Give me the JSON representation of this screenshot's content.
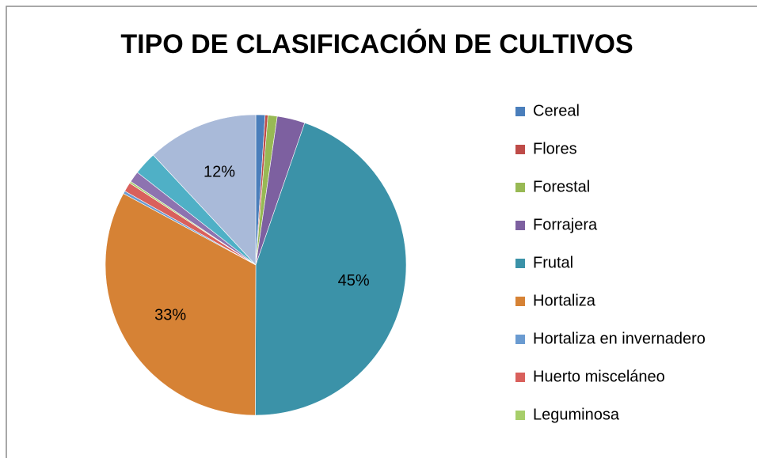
{
  "chart_data": {
    "type": "pie",
    "title": "TIPO DE CLASIFICACIÓN DE CULTIVOS",
    "categories": [
      "Cereal",
      "Flores",
      "Forestal",
      "Forrajera",
      "Frutal",
      "Hortaliza",
      "Hortaliza en invernadero",
      "Huerto misceláneo",
      "Leguminosa",
      null,
      null,
      null
    ],
    "values": [
      1,
      0.3,
      1,
      3,
      45,
      33,
      0.3,
      1,
      0.2,
      1.2,
      2.5,
      12
    ],
    "value_labels": [
      null,
      null,
      null,
      null,
      "45%",
      "33%",
      null,
      null,
      null,
      null,
      null,
      "12%"
    ],
    "colors": [
      "#4a7ebb",
      "#be4b48",
      "#98b954",
      "#7d60a0",
      "#3b92a8",
      "#d68235",
      "#6a9bd1",
      "#d9605c",
      "#a7ce6a",
      "#8d73b0",
      "#4fb0c6",
      "#a9bad9"
    ],
    "legend": "right"
  }
}
